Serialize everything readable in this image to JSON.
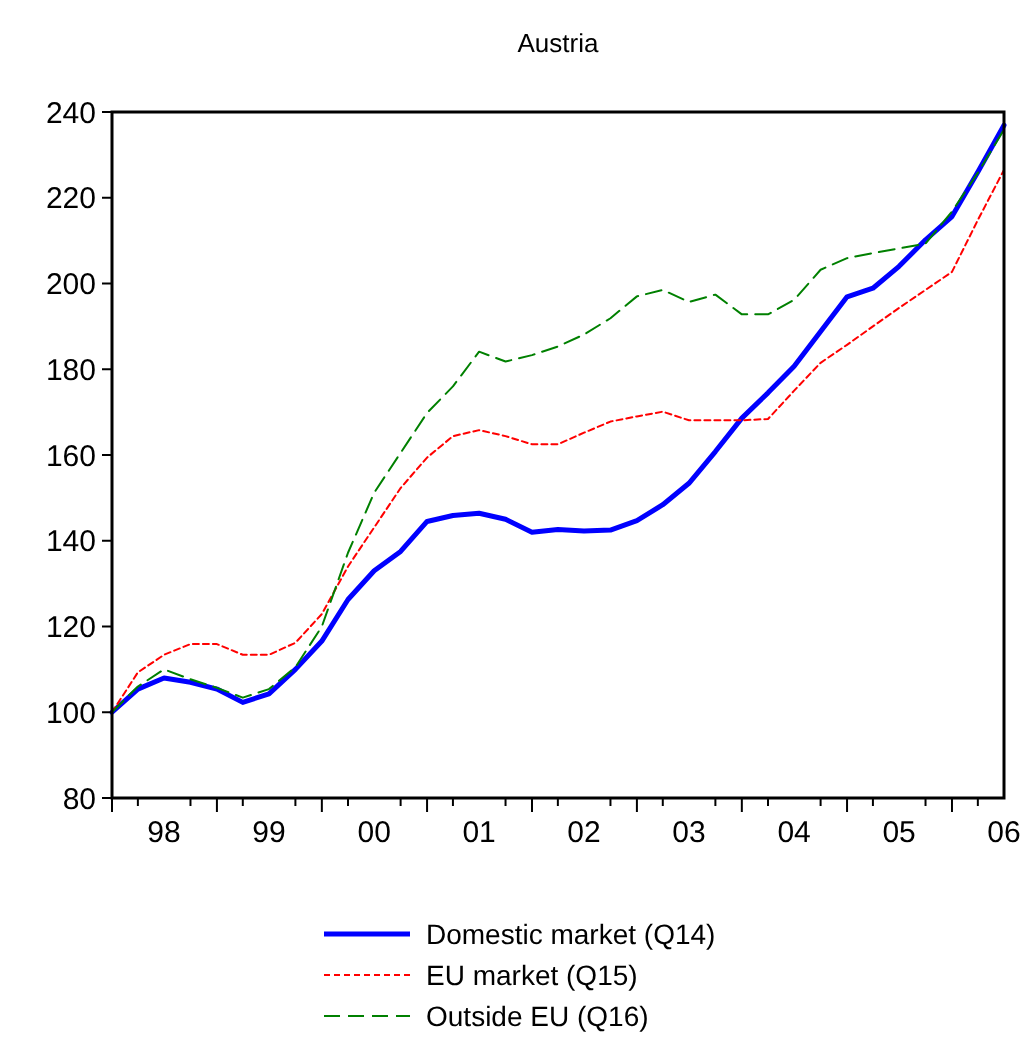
{
  "chart_data": {
    "type": "line",
    "title": "Austria",
    "x": [
      "1998-01",
      "1998-04",
      "1998-07",
      "1998-10",
      "1999-01",
      "1999-04",
      "1999-07",
      "1999-10",
      "2000-01",
      "2000-04",
      "2000-07",
      "2000-10",
      "2001-01",
      "2001-04",
      "2001-07",
      "2001-10",
      "2002-01",
      "2002-04",
      "2002-07",
      "2002-10",
      "2003-01",
      "2003-04",
      "2003-07",
      "2003-10",
      "2004-01",
      "2004-04",
      "2004-07",
      "2004-10",
      "2005-01",
      "2005-04",
      "2005-07",
      "2005-10",
      "2006-01",
      "2006-04",
      "2006-07"
    ],
    "series": [
      {
        "name": "Domestic market (Q14)",
        "color": "#0000ff",
        "line_style": "solid",
        "values": [
          100,
          105.4,
          108,
          107,
          105.4,
          102.3,
          104.3,
          110,
          116.6,
          126.3,
          133,
          137.5,
          144.5,
          145.9,
          146.4,
          145,
          142,
          142.6,
          142.3,
          142.5,
          144.7,
          148.4,
          153.4,
          160.8,
          168.6,
          174.5,
          180.7,
          188.8,
          196.9,
          198.9,
          204,
          210.2,
          215.6,
          226,
          236.9
        ]
      },
      {
        "name": "EU market (Q15)",
        "color": "#ff0000",
        "line_style": "dotted",
        "values": [
          100,
          109.3,
          113.4,
          115.9,
          115.9,
          113.4,
          113.4,
          116.2,
          122.9,
          134,
          143.1,
          152.3,
          159.4,
          164.4,
          165.8,
          164.4,
          162.5,
          162.5,
          165.2,
          167.8,
          169,
          170.1,
          168.1,
          168.1,
          168.1,
          168.4,
          175,
          181.5,
          185.7,
          190,
          194.3,
          198.5,
          202.7,
          214.8,
          226.5
        ]
      },
      {
        "name": "Outside EU (Q16)",
        "color": "#008000",
        "line_style": "dashed",
        "values": [
          100,
          106,
          110,
          107.7,
          105.7,
          103.4,
          105.4,
          110.5,
          120,
          137.2,
          151.2,
          160.5,
          169.8,
          176,
          184.1,
          181.8,
          183.3,
          185.3,
          188.1,
          191.9,
          197,
          198.5,
          195.7,
          197.4,
          192.8,
          192.8,
          196.2,
          203.2,
          205.9,
          207.1,
          208.2,
          209.3,
          216.8,
          225.8,
          235.9
        ]
      }
    ],
    "xlim": [
      "1998-01",
      "2006-07"
    ],
    "xticks": [
      {
        "value": "1998-01",
        "label": null
      },
      {
        "value": "1998-04",
        "label": null
      },
      {
        "value": "1998-07",
        "label": "98"
      },
      {
        "value": "1998-10",
        "label": null
      },
      {
        "value": "1999-01",
        "label": null
      },
      {
        "value": "1999-04",
        "label": null
      },
      {
        "value": "1999-07",
        "label": "99"
      },
      {
        "value": "1999-10",
        "label": null
      },
      {
        "value": "2000-01",
        "label": null
      },
      {
        "value": "2000-04",
        "label": null
      },
      {
        "value": "2000-07",
        "label": "00"
      },
      {
        "value": "2000-10",
        "label": null
      },
      {
        "value": "2001-01",
        "label": null
      },
      {
        "value": "2001-04",
        "label": null
      },
      {
        "value": "2001-07",
        "label": "01"
      },
      {
        "value": "2001-10",
        "label": null
      },
      {
        "value": "2002-01",
        "label": null
      },
      {
        "value": "2002-04",
        "label": null
      },
      {
        "value": "2002-07",
        "label": "02"
      },
      {
        "value": "2002-10",
        "label": null
      },
      {
        "value": "2003-01",
        "label": null
      },
      {
        "value": "2003-04",
        "label": null
      },
      {
        "value": "2003-07",
        "label": "03"
      },
      {
        "value": "2003-10",
        "label": null
      },
      {
        "value": "2004-01",
        "label": null
      },
      {
        "value": "2004-04",
        "label": null
      },
      {
        "value": "2004-07",
        "label": "04"
      },
      {
        "value": "2004-10",
        "label": null
      },
      {
        "value": "2005-01",
        "label": null
      },
      {
        "value": "2005-04",
        "label": null
      },
      {
        "value": "2005-07",
        "label": "05"
      },
      {
        "value": "2005-10",
        "label": null
      },
      {
        "value": "2006-01",
        "label": null
      },
      {
        "value": "2006-04",
        "label": null
      },
      {
        "value": "2006-07",
        "label": "06"
      }
    ],
    "ylim": [
      80,
      240
    ],
    "yticks": [
      80,
      100,
      120,
      140,
      160,
      180,
      200,
      220,
      240
    ],
    "grid": false,
    "legend": "bottom",
    "marker": "none"
  }
}
